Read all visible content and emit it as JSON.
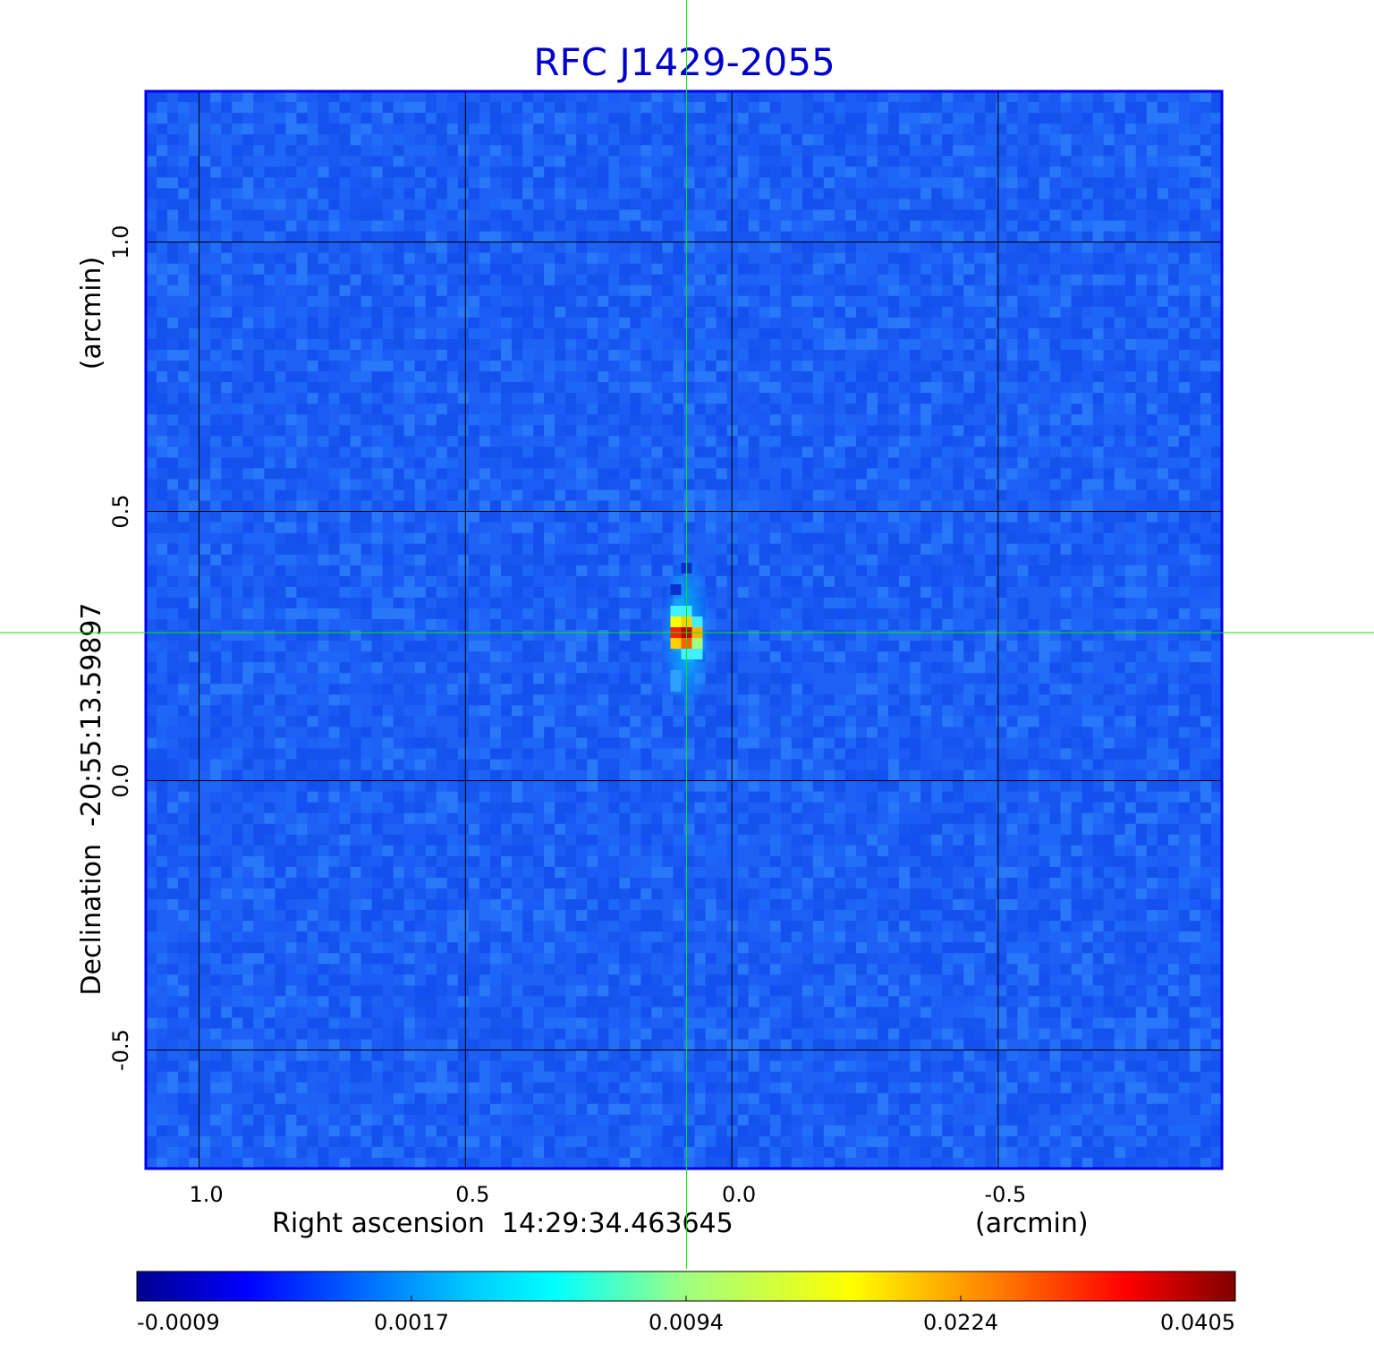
{
  "chart_data": {
    "type": "heatmap",
    "title": "RFC J1429-2055",
    "xlabel": "Right ascension  14:29:34.463645",
    "xunit": "(arcmin)",
    "ylabel": "Declination  -20:55:13.59897",
    "yunit": "(arcmin)",
    "xlim": [
      1.1,
      -0.92
    ],
    "ylim": [
      -0.72,
      1.28
    ],
    "x_ticks": [
      1.0,
      0.5,
      0.0,
      -0.5
    ],
    "x_tick_labels": [
      "1.0",
      "0.5",
      "0.0",
      "-0.5"
    ],
    "y_ticks": [
      1.0,
      0.5,
      0.0,
      -0.5
    ],
    "y_tick_labels": [
      "1.0",
      "0.5",
      "0.0",
      "-0.5"
    ],
    "grid": true,
    "crosshair": {
      "x": 0.085,
      "y": 0.275,
      "color": "#00ee00"
    },
    "background_level": 0.0002,
    "source": {
      "x": 0.085,
      "y": 0.275,
      "peak": 0.0405
    },
    "colorbar": {
      "orientation": "horizontal",
      "ticks": [
        -0.0009,
        0.0017,
        0.0094,
        0.0224,
        0.0405
      ],
      "tick_labels": [
        "-0.0009",
        "0.0017",
        "0.0094",
        "0.0224",
        "0.0405"
      ],
      "colormap": [
        "#00008f",
        "#0000ff",
        "#00c8ff",
        "#00ffff",
        "#a0ff80",
        "#ffff00",
        "#ff8000",
        "#ff0000",
        "#800000"
      ]
    },
    "title_color": "#0000cc",
    "frame_color": "#0000ee"
  }
}
